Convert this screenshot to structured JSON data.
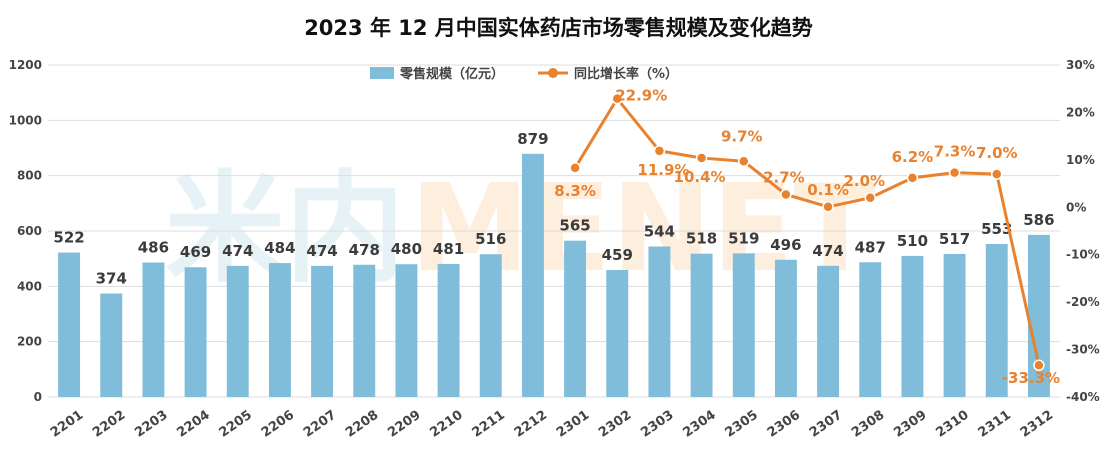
{
  "title": "2023 年 12 月中国实体药店市场零售规模及变化趋势",
  "watermark": "米内MENET",
  "colors": {
    "bar": "#7fbddb",
    "line": "#e8822e",
    "grid": "#dddddd",
    "watermark_left": "#e7f2f7",
    "watermark_right": "#fdeedd"
  },
  "chart_data": {
    "type": "bar",
    "title": "2023 年 12 月中国实体药店市场零售规模及变化趋势",
    "categories": [
      "2201",
      "2202",
      "2203",
      "2204",
      "2205",
      "2206",
      "2207",
      "2208",
      "2209",
      "2210",
      "2211",
      "2212",
      "2301",
      "2302",
      "2303",
      "2304",
      "2305",
      "2306",
      "2307",
      "2308",
      "2309",
      "2310",
      "2311",
      "2312"
    ],
    "series": [
      {
        "name": "零售规模（亿元）",
        "type": "bar",
        "axis": "left",
        "values": [
          522,
          374,
          486,
          469,
          474,
          484,
          474,
          478,
          480,
          481,
          516,
          879,
          565,
          459,
          544,
          518,
          519,
          496,
          474,
          487,
          510,
          517,
          553,
          586
        ]
      },
      {
        "name": "同比增长率（%）",
        "type": "line",
        "axis": "right",
        "values": [
          null,
          null,
          null,
          null,
          null,
          null,
          null,
          null,
          null,
          null,
          null,
          null,
          8.3,
          22.9,
          11.9,
          10.4,
          9.7,
          2.7,
          0.1,
          2.0,
          6.2,
          7.3,
          7.0,
          -33.3
        ],
        "labels": [
          null,
          null,
          null,
          null,
          null,
          null,
          null,
          null,
          null,
          null,
          null,
          null,
          "8.3%",
          "22.9%",
          "11.9%",
          "10.4%",
          "9.7%",
          "2.7%",
          "0.1%",
          "2.0%",
          "6.2%",
          "7.3%",
          "7.0%",
          "-33.3%"
        ]
      }
    ],
    "y_left": {
      "ylim": [
        0,
        1200
      ],
      "ticks": [
        "0",
        "200",
        "400",
        "600",
        "800",
        "1000",
        "1200"
      ]
    },
    "y_right": {
      "ylim": [
        -40,
        30
      ],
      "ticks": [
        "-40%",
        "-30%",
        "-20%",
        "-10%",
        "0%",
        "10%",
        "20%",
        "30%"
      ]
    },
    "legend": "top-center",
    "grid": true
  }
}
